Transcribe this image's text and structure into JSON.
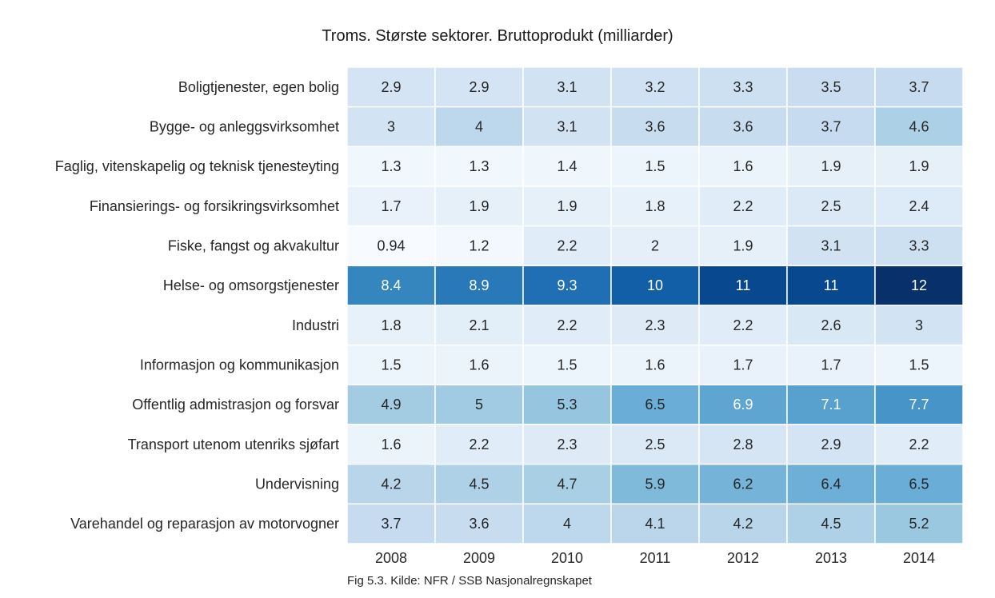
{
  "chart_data": {
    "type": "heatmap",
    "title": "Troms. Største sektorer. Bruttoprodukt (milliarder)",
    "xlabel": "",
    "ylabel": "",
    "colormap": "Blues",
    "x": [
      "2008",
      "2009",
      "2010",
      "2011",
      "2012",
      "2013",
      "2014"
    ],
    "y": [
      "Boligtjenester, egen bolig",
      "Bygge- og anleggsvirksomhet",
      "Faglig, vitenskapelig og teknisk tjenesteyting",
      "Finansierings- og forsikringsvirksomhet",
      "Fiske, fangst og akvakultur",
      "Helse- og omsorgstjenester",
      "Industri",
      "Informasjon og kommunikasjon",
      "Offentlig admistrasjon og forsvar",
      "Transport utenom utenriks sjøfart",
      "Undervisning",
      "Varehandel og reparasjon av motorvogner"
    ],
    "values": [
      [
        2.9,
        2.9,
        3.1,
        3.2,
        3.3,
        3.5,
        3.7
      ],
      [
        3,
        4,
        3.1,
        3.6,
        3.6,
        3.7,
        4.6
      ],
      [
        1.3,
        1.3,
        1.4,
        1.5,
        1.6,
        1.9,
        1.9
      ],
      [
        1.7,
        1.9,
        1.9,
        1.8,
        2.2,
        2.5,
        2.4
      ],
      [
        0.94,
        1.2,
        2.2,
        2,
        1.9,
        3.1,
        3.3
      ],
      [
        8.4,
        8.9,
        9.3,
        10,
        11,
        11,
        12
      ],
      [
        1.8,
        2.1,
        2.2,
        2.3,
        2.2,
        2.6,
        3
      ],
      [
        1.5,
        1.6,
        1.5,
        1.6,
        1.7,
        1.7,
        1.5
      ],
      [
        4.9,
        5,
        5.3,
        6.5,
        6.9,
        7.1,
        7.7
      ],
      [
        1.6,
        2.2,
        2.3,
        2.5,
        2.8,
        2.9,
        2.2
      ],
      [
        4.2,
        4.5,
        4.7,
        5.9,
        6.2,
        6.4,
        6.5
      ],
      [
        3.7,
        3.6,
        4,
        4.1,
        4.2,
        4.5,
        5.2
      ]
    ],
    "vmin": 0.94,
    "vmax": 12,
    "annotations": true,
    "grid": false,
    "legend": "none"
  },
  "caption": "Fig 5.3. Kilde: NFR / SSB Nasjonalregnskapet"
}
